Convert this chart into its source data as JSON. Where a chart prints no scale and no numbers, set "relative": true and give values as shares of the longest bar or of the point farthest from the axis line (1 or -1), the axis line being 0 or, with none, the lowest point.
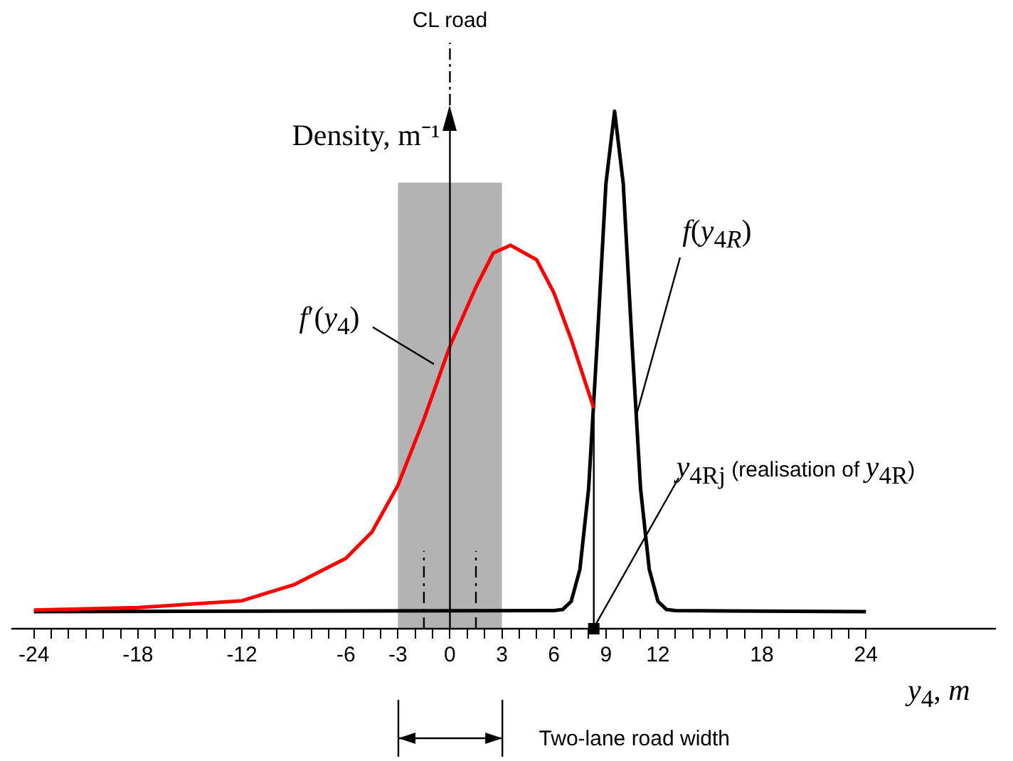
{
  "chart_data": {
    "type": "line",
    "relative": true,
    "xlabel": "y$_{4}$, m",
    "ylabel": "Density, m⁻¹",
    "xlim": [
      -25.3,
      31.5
    ],
    "xticks": [
      -24,
      {
        "value": -23,
        "label": null
      },
      {
        "value": -22,
        "label": null
      },
      {
        "value": -21,
        "label": null
      },
      {
        "value": -20,
        "label": null
      },
      {
        "value": -19,
        "label": null
      },
      -18,
      {
        "value": -17,
        "label": null
      },
      {
        "value": -16,
        "label": null
      },
      {
        "value": -15,
        "label": null
      },
      {
        "value": -14,
        "label": null
      },
      {
        "value": -13,
        "label": null
      },
      -12,
      {
        "value": -11,
        "label": null
      },
      {
        "value": -10,
        "label": null
      },
      {
        "value": -9,
        "label": null
      },
      {
        "value": -8,
        "label": null
      },
      {
        "value": -7,
        "label": null
      },
      -6,
      {
        "value": -5,
        "label": null
      },
      {
        "value": -4,
        "label": null
      },
      -3,
      {
        "value": -2,
        "label": null
      },
      {
        "value": -1,
        "label": null
      },
      0,
      {
        "value": 1,
        "label": null
      },
      {
        "value": 2,
        "label": null
      },
      3,
      {
        "value": 4,
        "label": null
      },
      {
        "value": 5,
        "label": null
      },
      6,
      {
        "value": 7,
        "label": null
      },
      {
        "value": 8,
        "label": null
      },
      9,
      {
        "value": 10,
        "label": null
      },
      {
        "value": 11,
        "label": null
      },
      12,
      {
        "value": 13,
        "label": null
      },
      {
        "value": 14,
        "label": null
      },
      {
        "value": 15,
        "label": null
      },
      {
        "value": 16,
        "label": null
      },
      {
        "value": 17,
        "label": null
      },
      18,
      {
        "value": 19,
        "label": null
      },
      {
        "value": 20,
        "label": null
      },
      {
        "value": 21,
        "label": null
      },
      {
        "value": 22,
        "label": null
      },
      {
        "value": 23,
        "label": null
      },
      24
    ],
    "series": [
      {
        "color": "#ff0000",
        "x": [
          -24,
          -18,
          -12,
          -9,
          -6,
          -4.5,
          -3,
          -1.5,
          0,
          1.5,
          2.5,
          3.5,
          5,
          6,
          7,
          8.3
        ],
        "values": [
          0.036,
          0.041,
          0.054,
          0.085,
          0.136,
          0.187,
          0.277,
          0.405,
          0.546,
          0.66,
          0.726,
          0.741,
          0.713,
          0.649,
          0.559,
          0.426
        ]
      },
      {
        "color": "#000000",
        "x": [
          -24,
          6,
          6.5,
          7,
          7.5,
          8,
          8.5,
          9,
          9.5,
          10,
          10.5,
          11,
          11.5,
          12,
          12.5,
          13,
          24
        ],
        "values": [
          0.033,
          0.035,
          0.037,
          0.053,
          0.115,
          0.27,
          0.555,
          0.86,
          1,
          0.86,
          0.555,
          0.27,
          0.115,
          0.053,
          0.037,
          0.035,
          0.033
        ]
      }
    ],
    "bands": [
      {
        "axis": "x",
        "from": -3,
        "to": 3,
        "color": "#b3b3b3"
      }
    ],
    "ref_lines": [
      {
        "axis": "x",
        "value": 0,
        "label": "CL road"
      },
      {
        "axis": "x",
        "value": 8.3,
        "label": null
      },
      {
        "axis": "x",
        "value": -1.5,
        "label": null,
        "line_style": "dashed"
      },
      {
        "axis": "x",
        "value": 1.5,
        "label": null,
        "line_style": "dashed"
      }
    ],
    "annotations": [
      {
        "text": "f′(y$_{4}$)",
        "x": -0.9,
        "y": 0.51
      },
      {
        "text": "f(y$_{4R}$)",
        "x": 10.7,
        "y": 0.41
      },
      {
        "text": "y$_{4Rj}$ (realisation of y$_{4R}$)",
        "x": 8.3,
        "y": 0
      },
      "Two-lane road width"
    ],
    "grid": false,
    "legend": false,
    "marker": "none",
    "line_style": "solid"
  }
}
